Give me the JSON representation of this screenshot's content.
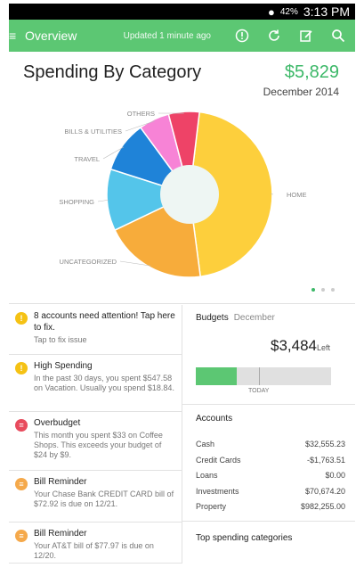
{
  "status": {
    "battery": "42%",
    "time": "3:13 PM"
  },
  "appbar": {
    "title": "Overview",
    "updated": "Updated 1 minute ago"
  },
  "spending": {
    "title": "Spending By Category",
    "amount": "$5,829",
    "date": "December 2014"
  },
  "chart_data": {
    "type": "pie",
    "categories": [
      "HOME",
      "UNCATEGORIZED",
      "SHOPPING",
      "TRAVEL",
      "BILLS & UTILITIES",
      "OTHERS"
    ],
    "values": [
      46,
      20,
      12,
      10,
      6,
      6
    ],
    "colors": [
      "#fdcf3c",
      "#f7ac3b",
      "#54c5ea",
      "#1f83d8",
      "#f783d6",
      "#ee4367"
    ]
  },
  "alerts": [
    {
      "title": "8 accounts need attention! Tap here to fix.",
      "body": "Tap to fix issue",
      "icon": "!",
      "color": "#f5c214"
    },
    {
      "title": "High Spending",
      "body": "In the past 30 days, you spent $547.58 on Vacation. Usually you spend $18.84.",
      "icon": "!",
      "color": "#f5c214"
    },
    {
      "title": "Overbudget",
      "body": "This month you spent $33 on Coffee Shops. This exceeds your budget of $24 by $9.",
      "icon": "=",
      "color": "#e84b5d"
    },
    {
      "title": "Bill Reminder",
      "body": "Your Chase Bank CREDIT CARD bill of $72.92 is due on 12/21.",
      "icon": "≡",
      "color": "#f5a94b"
    },
    {
      "title": "Bill Reminder",
      "body": "Your AT&T bill of $77.97 is due on 12/20.",
      "icon": "≡",
      "color": "#f5a94b"
    }
  ],
  "budgets": {
    "label": "Budgets",
    "month": "December",
    "amount": "$3,484",
    "left_label": "Left",
    "today_label": "TODAY",
    "progress": 0.3
  },
  "accounts": {
    "label": "Accounts",
    "rows": [
      {
        "name": "Cash",
        "value": "$32,555.23"
      },
      {
        "name": "Credit Cards",
        "value": "-$1,763.51"
      },
      {
        "name": "Loans",
        "value": "$0.00"
      },
      {
        "name": "Investments",
        "value": "$70,674.20"
      },
      {
        "name": "Property",
        "value": "$982,255.00"
      }
    ]
  },
  "top_spending": {
    "label": "Top spending categories"
  }
}
